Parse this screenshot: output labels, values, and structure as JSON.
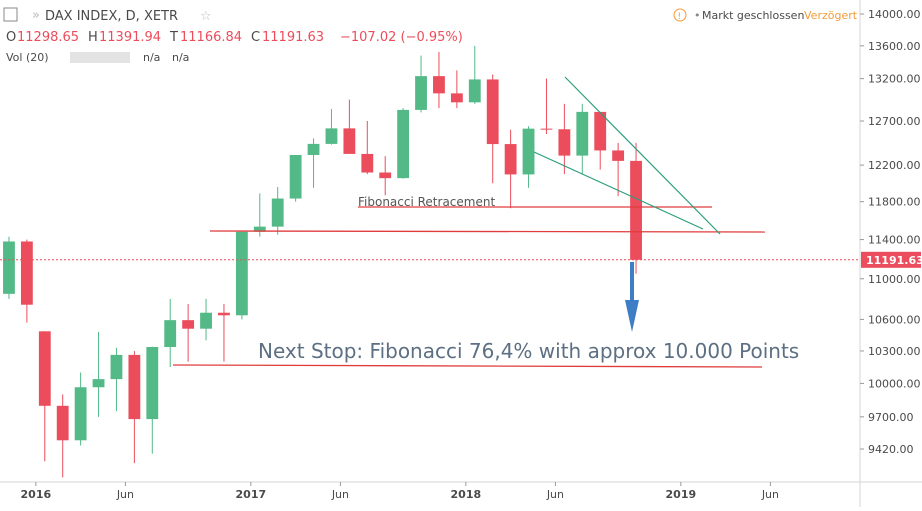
{
  "header": {
    "symbol": "DAX INDEX, D, XETR",
    "open_prefix": "O",
    "open": 11298.65,
    "high_prefix": "H",
    "high": 11391.94,
    "low_prefix": "T",
    "low": 11166.84,
    "close_prefix": "C",
    "close": 11191.63,
    "change": "−107.02 (−0.95%)",
    "volume": "Vol (20)",
    "volume_a": "n/a",
    "volume_b": "n/a",
    "status": "Markt geschlossen",
    "delay": "Verzögert"
  },
  "chart_data": {
    "type": "candlestick",
    "log_scale": true,
    "up_color": "#53b987",
    "down_color": "#eb4d5c",
    "annotations": [
      "Fibonacci Retracement",
      "Next Stop: Fibonacci 76,4% with approx 10.000 Points"
    ],
    "last_price": 11191.63,
    "x": [
      "2015-11",
      "2015-12",
      "2016-01",
      "2016-02",
      "2016-03",
      "2016-04",
      "2016-05",
      "2016-06",
      "2016-07",
      "2016-08",
      "2016-09",
      "2016-10",
      "2016-11",
      "2016-12",
      "2017-01",
      "2017-02",
      "2017-03",
      "2017-04",
      "2017-05",
      "2017-06",
      "2017-07",
      "2017-08",
      "2017-09",
      "2017-10",
      "2017-11",
      "2017-12",
      "2018-01",
      "2018-02",
      "2018-03",
      "2018-04",
      "2018-05",
      "2018-06",
      "2018-07",
      "2018-08",
      "2018-09",
      "2018-10"
    ],
    "open": [
      10850,
      11380,
      10486,
      9798,
      9495,
      9965,
      10039,
      10263,
      9680,
      10337,
      10593,
      10511,
      10665,
      10640,
      11481,
      11535,
      11834,
      12313,
      12438,
      12615,
      12325,
      12118,
      12056,
      12829,
      13230,
      13024,
      12918,
      13190,
      12436,
      12097,
      12612,
      12605,
      12306,
      12806,
      12364,
      12247
    ],
    "high": [
      11430,
      11400,
      10486,
      9900,
      10100,
      10480,
      10330,
      10300,
      10340,
      10800,
      10750,
      10800,
      10750,
      11480,
      11890,
      11960,
      12300,
      12500,
      12840,
      12950,
      12700,
      12300,
      12850,
      13480,
      13525,
      13300,
      13600,
      13250,
      12600,
      12640,
      13200,
      12900,
      12900,
      12800,
      12450,
      12450
    ],
    "low": [
      10800,
      10570,
      9314,
      9180,
      9450,
      9700,
      9750,
      9300,
      9380,
      10150,
      10200,
      10400,
      10200,
      10600,
      11430,
      11450,
      11800,
      11950,
      12430,
      12350,
      12100,
      11870,
      12050,
      12800,
      12850,
      12850,
      12900,
      12000,
      11730,
      11950,
      12550,
      12100,
      12100,
      12150,
      11860,
      11050
    ],
    "close": [
      11380,
      10743,
      9798,
      9495,
      9965,
      10039,
      10263,
      9680,
      10337,
      10593,
      10511,
      10665,
      10640,
      11481,
      11535,
      11834,
      12313,
      12438,
      12615,
      12325,
      12118,
      12056,
      12829,
      13230,
      13024,
      12918,
      13190,
      12436,
      12097,
      12612,
      12605,
      12306,
      12806,
      12364,
      12247,
      11191.63
    ],
    "xlim": [
      "2015-11",
      "2019-11"
    ],
    "xticks": [
      {
        "value": "2016-01",
        "label": "2016"
      },
      {
        "value": "2016-06",
        "label": "Jun"
      },
      {
        "value": "2017-01",
        "label": "2017"
      },
      {
        "value": "2017-06",
        "label": "Jun"
      },
      {
        "value": "2018-01",
        "label": "2018"
      },
      {
        "value": "2018-06",
        "label": "Jun"
      },
      {
        "value": "2019-01",
        "label": "2019"
      },
      {
        "value": "2019-06",
        "label": "Jun"
      }
    ],
    "ylim": [
      9141,
      14180
    ],
    "yticks": [
      {
        "value": 14000,
        "label": "14000.00"
      },
      {
        "value": 13600,
        "label": "13600.00"
      },
      {
        "value": 13200,
        "label": "13200.00"
      },
      {
        "value": 12700,
        "label": "12700.00"
      },
      {
        "value": 12200,
        "label": "12200.00"
      },
      {
        "value": 11800,
        "label": "11800.00"
      },
      {
        "value": 11400,
        "label": "11400.00"
      },
      {
        "value": 11000,
        "label": "11000.00"
      },
      {
        "value": 10600,
        "label": "10600.00"
      },
      {
        "value": 10300,
        "label": "10300.00"
      },
      {
        "value": 10000,
        "label": "10000.00"
      },
      {
        "value": 9700,
        "label": "9700.00"
      },
      {
        "value": 9420,
        "label": "9420.00"
      }
    ]
  }
}
